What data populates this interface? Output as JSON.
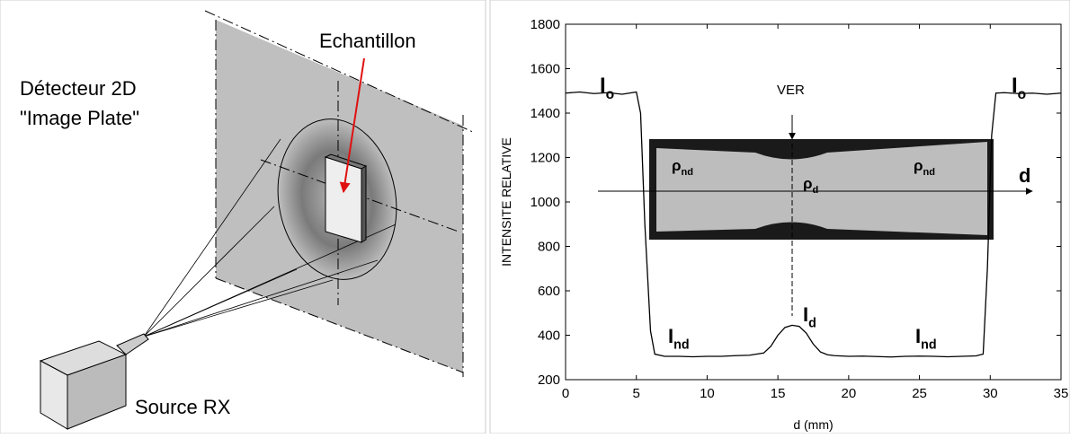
{
  "diagram": {
    "detector_label": [
      "Détecteur 2D",
      "\"Image Plate\""
    ],
    "sample_label": "Echantillon",
    "source_label": "Source RX"
  },
  "chart_data": {
    "type": "line",
    "xlabel": "d (mm)",
    "ylabel": "INTENSITE RELATIVE",
    "x": [
      0,
      1,
      2,
      3,
      4,
      5,
      5.3,
      5.6,
      6,
      6.3,
      7,
      8,
      9,
      10,
      11,
      12,
      13,
      14,
      14.5,
      15,
      15.5,
      16,
      16.5,
      17,
      17.5,
      18,
      18.5,
      19,
      20,
      21,
      22,
      23,
      24,
      25,
      26,
      27,
      28,
      29,
      29.5,
      29.8,
      30.1,
      30.4,
      31,
      32,
      33,
      34,
      35
    ],
    "series": [
      {
        "color": "#000000",
        "values": [
          1490,
          1495,
          1488,
          1492,
          1485,
          1495,
          1400,
          900,
          420,
          315,
          305,
          305,
          303,
          305,
          305,
          308,
          310,
          320,
          350,
          400,
          435,
          445,
          440,
          410,
          360,
          325,
          312,
          308,
          305,
          306,
          304,
          302,
          305,
          306,
          305,
          303,
          305,
          307,
          315,
          700,
          1300,
          1490,
          1492,
          1488,
          1490,
          1485,
          1490
        ]
      }
    ],
    "xlim": [
      0,
      35
    ],
    "xticks": [
      0,
      5,
      10,
      15,
      20,
      25,
      30,
      35
    ],
    "ylim": [
      200,
      1800
    ],
    "yticks": [
      200,
      400,
      600,
      800,
      1000,
      1200,
      1400,
      1600,
      1800
    ],
    "annotations": [
      {
        "text": "I",
        "sub": "o"
      },
      {
        "text": "I",
        "sub": "o"
      },
      {
        "text": "VER"
      },
      {
        "text": "ρ",
        "sub": "nd"
      },
      {
        "text": "ρ",
        "sub": "d"
      },
      {
        "text": "ρ",
        "sub": "nd"
      },
      {
        "text": "d"
      },
      {
        "text": "I",
        "sub": "nd"
      },
      {
        "text": "I",
        "sub": "d"
      },
      {
        "text": "I",
        "sub": "nd"
      }
    ]
  }
}
